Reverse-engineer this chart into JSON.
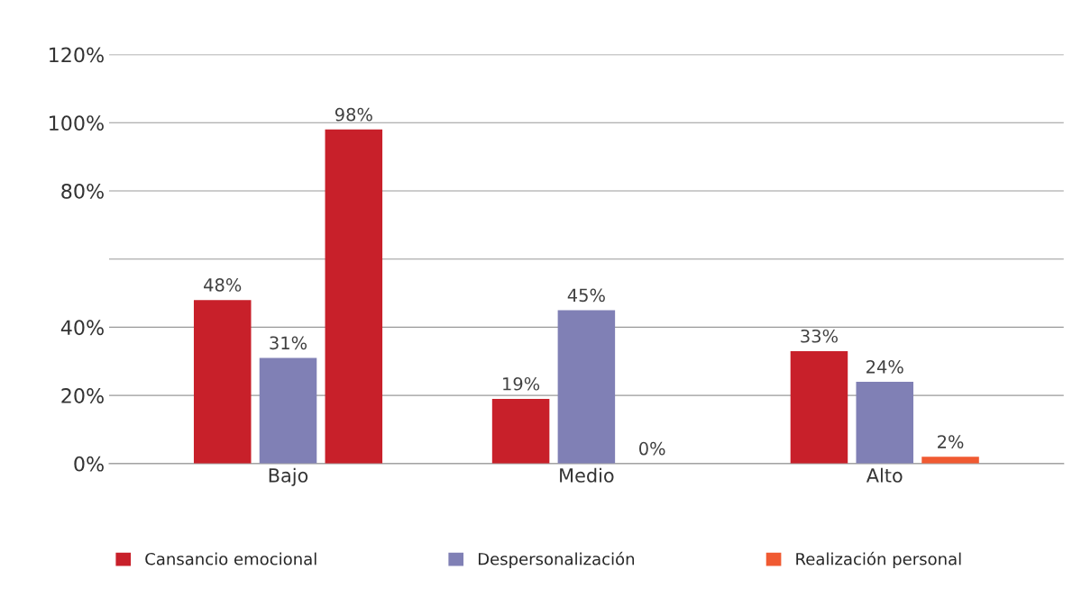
{
  "chart_data": {
    "type": "bar",
    "categories": [
      "Bajo",
      "Medio",
      "Alto"
    ],
    "series": [
      {
        "name": "Cansancio emocional",
        "color": "#c8202a",
        "values": [
          48,
          19,
          33
        ]
      },
      {
        "name": "Despersonalización",
        "color": "#8080b5",
        "values": [
          31,
          45,
          24
        ]
      },
      {
        "name": "Realización personal",
        "color": "#f05a32",
        "colors": [
          "#c8202a",
          "#f05a32",
          "#f05a32"
        ],
        "values": [
          98,
          0,
          2
        ]
      }
    ],
    "ylim": [
      0,
      120
    ],
    "yticks": [
      {
        "value": 0,
        "label": "0%"
      },
      {
        "value": 20,
        "label": "20%"
      },
      {
        "value": 40,
        "label": "40%"
      },
      {
        "value": 60,
        "label": null
      },
      {
        "value": 80,
        "label": "80%"
      },
      {
        "value": 100,
        "label": "100%"
      },
      {
        "value": 120,
        "label": "120%"
      }
    ],
    "value_labels": [
      [
        "48%",
        "19%",
        "33%"
      ],
      [
        "31%",
        "45%",
        "24%"
      ],
      [
        "98%",
        "0%",
        "2%"
      ]
    ],
    "grid": "y",
    "legend": "bottom"
  }
}
